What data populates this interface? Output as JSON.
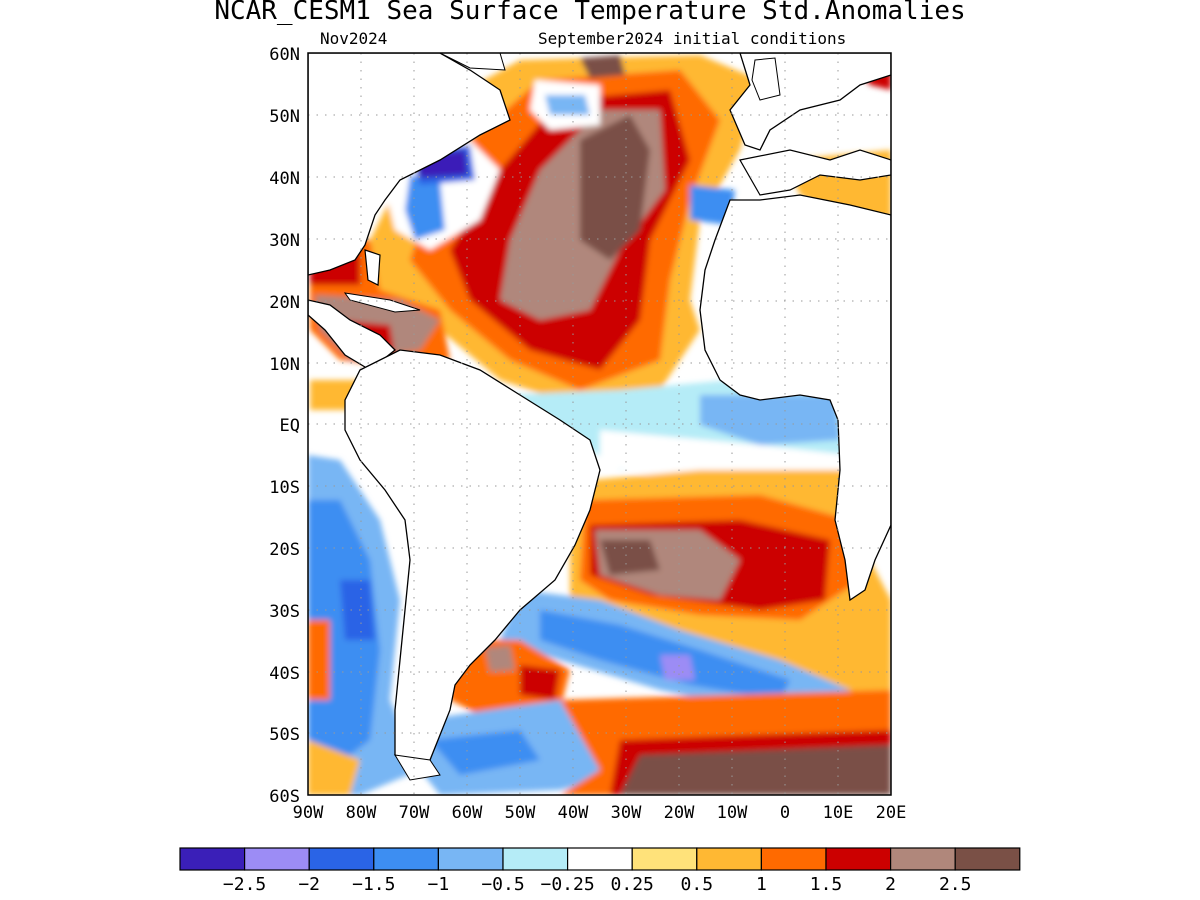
{
  "title": "NCAR_CESM1 Sea Surface Temperature Std.Anomalies",
  "subtitle_left": "Nov2024",
  "subtitle_right": "September2024 initial conditions",
  "map": {
    "lon_range": [
      -90,
      20
    ],
    "lat_range": [
      -60,
      60
    ],
    "lat_ticks": [
      "60N",
      "50N",
      "40N",
      "30N",
      "20N",
      "10N",
      "EQ",
      "10S",
      "20S",
      "30S",
      "40S",
      "50S",
      "60S"
    ],
    "lon_ticks": [
      "90W",
      "80W",
      "70W",
      "60W",
      "50W",
      "40W",
      "30W",
      "20W",
      "10W",
      "0",
      "10E",
      "20E"
    ],
    "grid": "dotted"
  },
  "colorbar": {
    "colors": [
      "#3a1fb8",
      "#9c8cf5",
      "#2a64e6",
      "#3d8ef2",
      "#78b6f4",
      "#b5ecf7",
      "#ffffff",
      "#ffe27a",
      "#ffb833",
      "#ff6a00",
      "#cc0000",
      "#b0877b",
      "#7a5046"
    ],
    "labels": [
      "−2.5",
      "−2",
      "−1.5",
      "−1",
      "−0.5",
      "−0.25",
      "0.25",
      "0.5",
      "1",
      "1.5",
      "2",
      "2.5"
    ]
  }
}
